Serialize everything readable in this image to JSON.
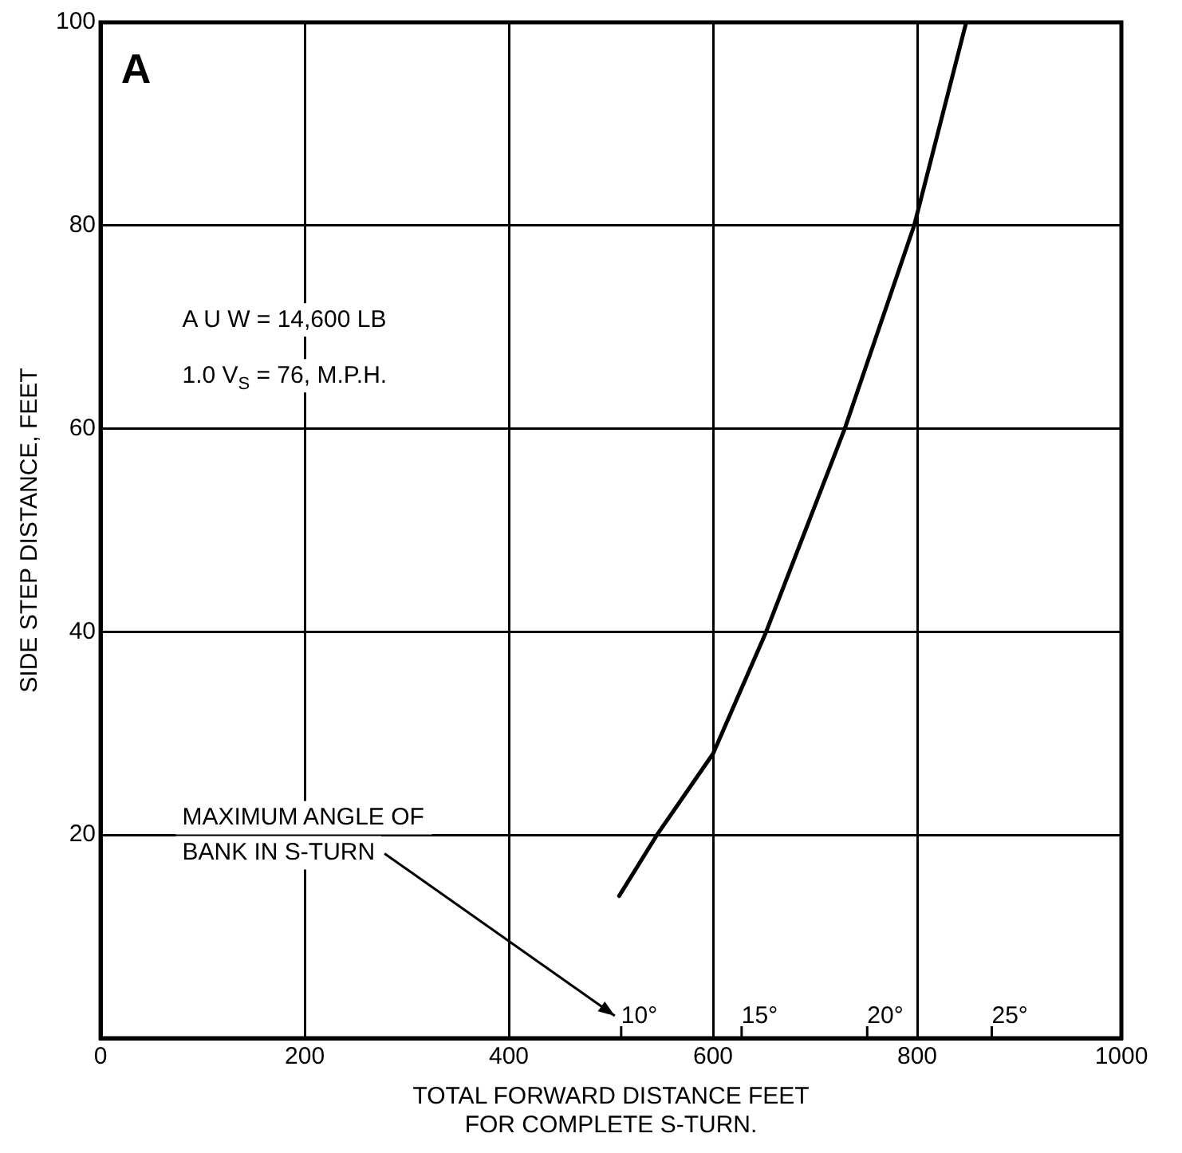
{
  "chart_data": {
    "type": "line",
    "xlabel": "TOTAL FORWARD DISTANCE FEET\nFOR COMPLETE S-TURN.",
    "ylabel": "SIDE STEP DISTANCE, FEET",
    "series": [
      {
        "color": "#000000",
        "x": [
          508,
          545,
          600,
          652,
          729,
          797,
          848
        ],
        "values": [
          14,
          20,
          28,
          40,
          60,
          80,
          100
        ]
      }
    ],
    "xlim": [
      0,
      1000
    ],
    "xticks": [
      0,
      200,
      400,
      600,
      800,
      1000
    ],
    "ylim": [
      0,
      100
    ],
    "yticks": [
      20,
      40,
      60,
      80,
      100
    ],
    "grid": true,
    "legend": false,
    "marker": "none",
    "line_style": "solid",
    "annotations": [
      "A",
      "A U W = 14,600 LB",
      "1.0 V$_{S}$ = 76, M.P.H.",
      "MAXIMUM ANGLE OF\nBANK IN S-TURN",
      "10°",
      "15°",
      "20°",
      "25°"
    ]
  }
}
